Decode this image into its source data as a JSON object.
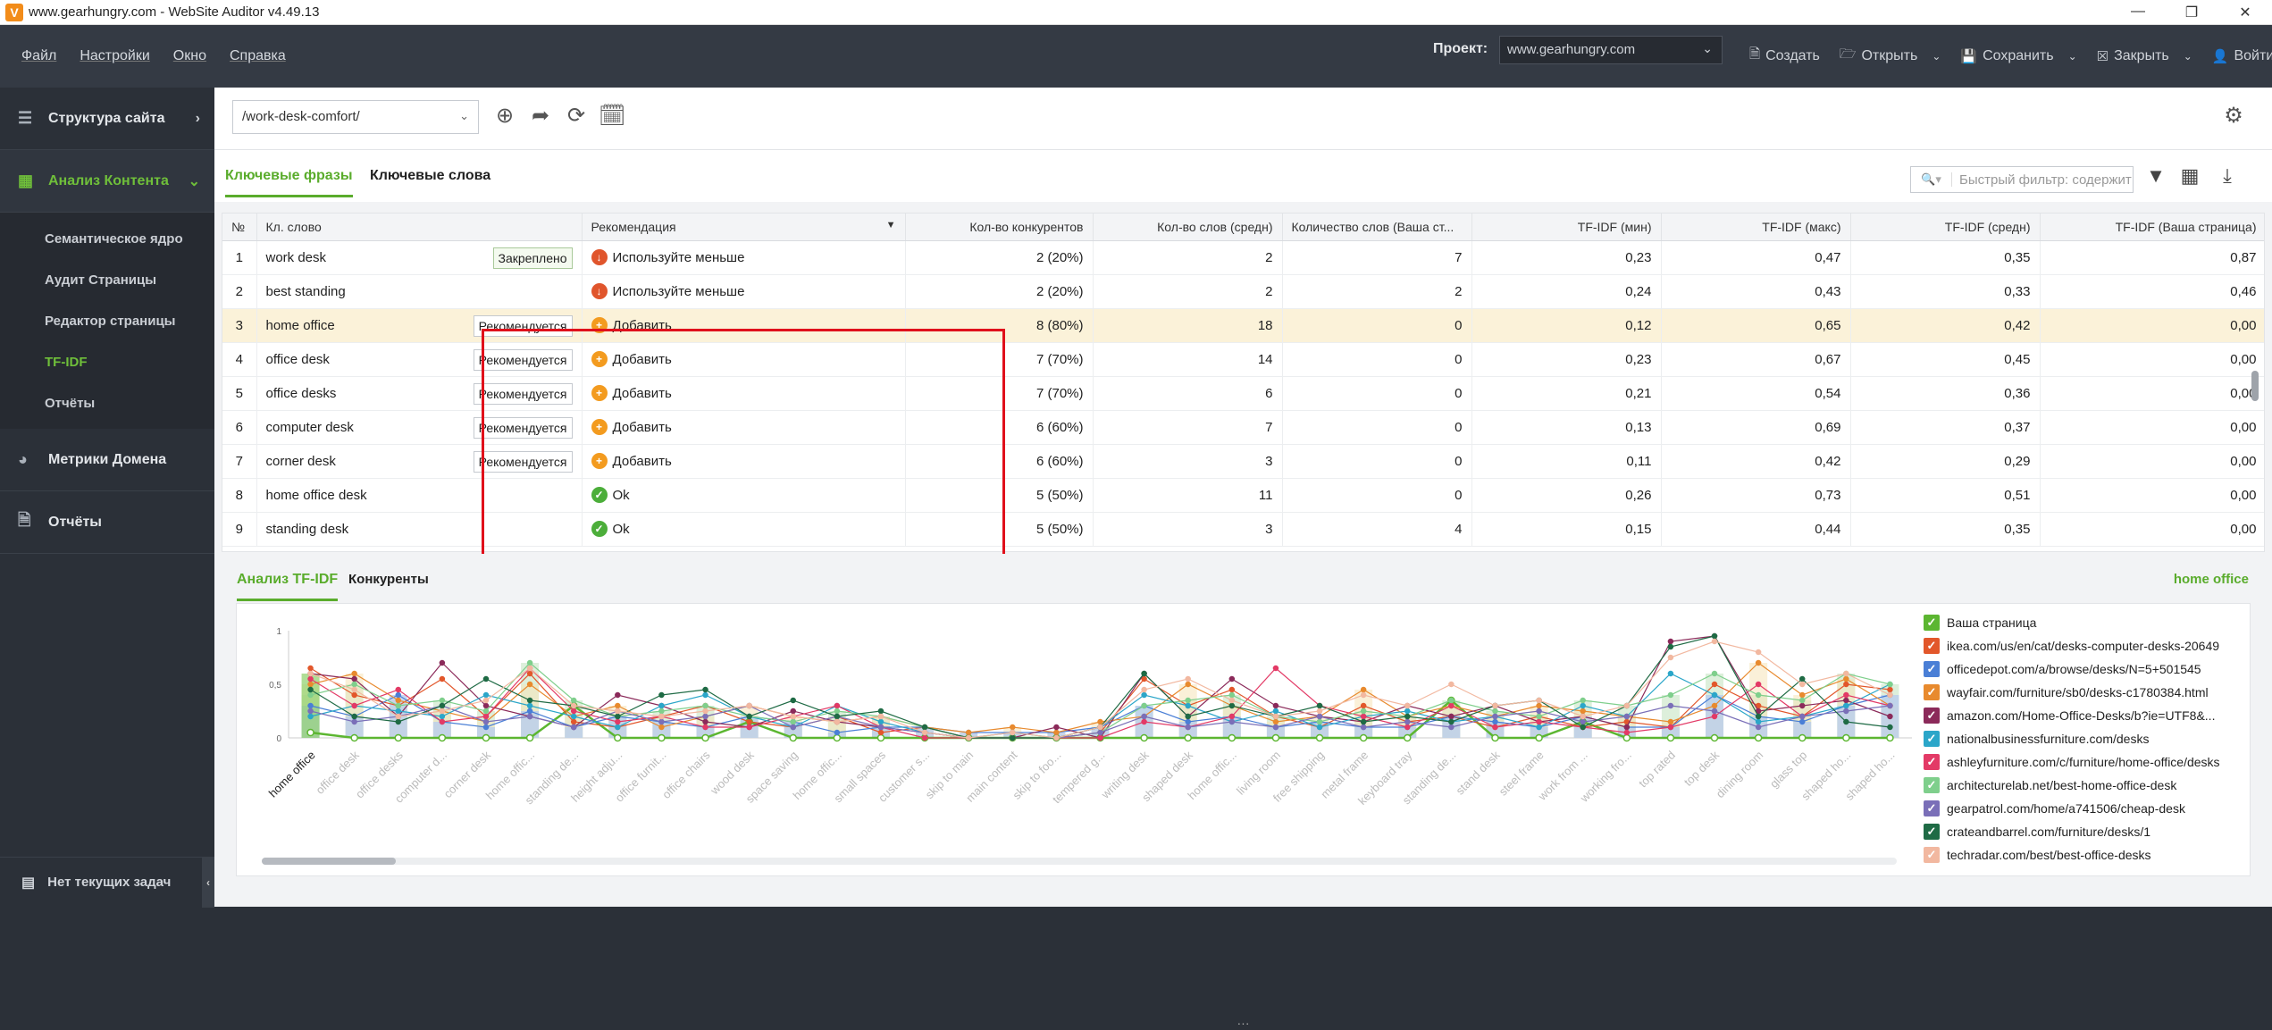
{
  "window": {
    "title": "www.gearhungry.com - WebSite Auditor v4.49.13"
  },
  "menu": [
    "Файл",
    "Настройки",
    "Окно",
    "Справка"
  ],
  "project": {
    "label": "Проект:",
    "value": "www.gearhungry.com"
  },
  "tools": {
    "create": "Создать",
    "open": "Открыть",
    "save": "Сохранить",
    "close": "Закрыть",
    "login": "Войти"
  },
  "sidebar": {
    "site_structure": "Структура сайта",
    "content_analysis": "Анализ Контента",
    "sub": [
      "Семантическое ядро",
      "Аудит Страницы",
      "Редактор страницы",
      "TF-IDF",
      "Отчёты"
    ],
    "domain_metrics": "Метрики Домена",
    "reports": "Отчёты",
    "no_tasks": "Нет текущих задач"
  },
  "toolbar": {
    "url": "/work-desk-comfort/"
  },
  "tabs": {
    "phrases": "Ключевые фразы",
    "words": "Ключевые слова"
  },
  "filter": {
    "placeholder": "Быстрый фильтр: содержит"
  },
  "table": {
    "headers": [
      "№",
      "Кл. слово",
      "Рекомендация",
      "Кол-во конкурентов",
      "Кол-во слов (средн)",
      "Количество слов (Ваша ст...",
      "TF-IDF (мин)",
      "TF-IDF (макс)",
      "TF-IDF (средн)",
      "TF-IDF (Ваша страница)"
    ],
    "rows": [
      {
        "n": "1",
        "kw": "work desk",
        "tag": "Закреплено",
        "rec": "Используйте меньше",
        "comp": "2 (20%)",
        "avg": "2",
        "yours": "7",
        "min": "0,23",
        "max": "0,47",
        "mid": "0,35",
        "page": "0,87"
      },
      {
        "n": "2",
        "kw": "best standing",
        "tag": "",
        "rec": "Используйте меньше",
        "comp": "2 (20%)",
        "avg": "2",
        "yours": "2",
        "min": "0,24",
        "max": "0,43",
        "mid": "0,33",
        "page": "0,46"
      },
      {
        "n": "3",
        "kw": "home office",
        "tag": "Рекомендуется",
        "rec": "Добавить",
        "comp": "8 (80%)",
        "avg": "18",
        "yours": "0",
        "min": "0,12",
        "max": "0,65",
        "mid": "0,42",
        "page": "0,00"
      },
      {
        "n": "4",
        "kw": "office desk",
        "tag": "Рекомендуется",
        "rec": "Добавить",
        "comp": "7 (70%)",
        "avg": "14",
        "yours": "0",
        "min": "0,23",
        "max": "0,67",
        "mid": "0,45",
        "page": "0,00"
      },
      {
        "n": "5",
        "kw": "office desks",
        "tag": "Рекомендуется",
        "rec": "Добавить",
        "comp": "7 (70%)",
        "avg": "6",
        "yours": "0",
        "min": "0,21",
        "max": "0,54",
        "mid": "0,36",
        "page": "0,00"
      },
      {
        "n": "6",
        "kw": "computer desk",
        "tag": "Рекомендуется",
        "rec": "Добавить",
        "comp": "6 (60%)",
        "avg": "7",
        "yours": "0",
        "min": "0,13",
        "max": "0,69",
        "mid": "0,37",
        "page": "0,00"
      },
      {
        "n": "7",
        "kw": "corner desk",
        "tag": "Рекомендуется",
        "rec": "Добавить",
        "comp": "6 (60%)",
        "avg": "3",
        "yours": "0",
        "min": "0,11",
        "max": "0,42",
        "mid": "0,29",
        "page": "0,00"
      },
      {
        "n": "8",
        "kw": "home office desk",
        "tag": "",
        "rec": "Ok",
        "comp": "5 (50%)",
        "avg": "11",
        "yours": "0",
        "min": "0,26",
        "max": "0,73",
        "mid": "0,51",
        "page": "0,00"
      },
      {
        "n": "9",
        "kw": "standing desk",
        "tag": "",
        "rec": "Ok",
        "comp": "5 (50%)",
        "avg": "3",
        "yours": "4",
        "min": "0,15",
        "max": "0,44",
        "mid": "0,35",
        "page": "0,00"
      }
    ]
  },
  "bottom_tabs": {
    "tfidf": "Анализ TF-IDF",
    "competitors": "Конкуренты",
    "selected": "home office"
  },
  "chart_data": {
    "type": "line",
    "yticks": [
      "0",
      "0,5",
      "1"
    ],
    "ylim": [
      0,
      1
    ],
    "categories": [
      "home office",
      "office desk",
      "office desks",
      "computer d...",
      "corner desk",
      "home offic...",
      "standing de...",
      "height adju...",
      "office furnit...",
      "office chairs",
      "wood desk",
      "space saving",
      "home offic...",
      "small spaces",
      "customer s...",
      "skip to main",
      "main content",
      "skip to foo...",
      "tempered g...",
      "writing desk",
      "shaped desk",
      "home offic...",
      "living room",
      "free shipping",
      "metal frame",
      "keyboard tray",
      "standing de...",
      "stand desk",
      "steel frame",
      "work from ...",
      "working fro...",
      "top rated",
      "top desk",
      "dining room",
      "glass top",
      "shaped ho...",
      "shaped ho..."
    ],
    "series": [
      {
        "name": "Ваша страница",
        "color": "#5cb631",
        "values": [
          0.05,
          0,
          0,
          0,
          0,
          0,
          0.3,
          0,
          0,
          0,
          0.15,
          0,
          0,
          0,
          0,
          0,
          0,
          0,
          0,
          0,
          0,
          0,
          0,
          0,
          0,
          0,
          0.35,
          0,
          0,
          0.15,
          0,
          0,
          0,
          0,
          0,
          0,
          0
        ]
      },
      {
        "name": "ikea.com/us/en/cat/desks-computer-desks-20649",
        "color": "#e2572b",
        "values": [
          0.65,
          0.4,
          0.3,
          0.55,
          0.2,
          0.6,
          0.15,
          0.1,
          0.2,
          0.3,
          0.15,
          0.1,
          0.2,
          0.05,
          0.1,
          0,
          0,
          0,
          0.05,
          0.55,
          0.3,
          0.45,
          0.2,
          0.1,
          0.3,
          0.15,
          0.2,
          0.1,
          0.2,
          0.1,
          0.15,
          0.1,
          0.5,
          0.3,
          0.2,
          0.5,
          0.45
        ]
      },
      {
        "name": "officedepot.com/a/browse/desks/N=5+501545",
        "color": "#4a7fd6",
        "values": [
          0.3,
          0.2,
          0.4,
          0.15,
          0.1,
          0.25,
          0.1,
          0.2,
          0.15,
          0.1,
          0.2,
          0.15,
          0.05,
          0.1,
          0.1,
          0.05,
          0.05,
          0.05,
          0.1,
          0.3,
          0.15,
          0.2,
          0.1,
          0.15,
          0.1,
          0.1,
          0.2,
          0.15,
          0.1,
          0.2,
          0.1,
          0.1,
          0.4,
          0.2,
          0.15,
          0.3,
          0.4
        ]
      },
      {
        "name": "wayfair.com/furniture/sb0/desks-c1780384.html",
        "color": "#e88a2e",
        "values": [
          0.5,
          0.6,
          0.35,
          0.25,
          0.15,
          0.5,
          0.2,
          0.3,
          0.1,
          0.2,
          0.3,
          0.2,
          0.15,
          0.2,
          0.1,
          0.05,
          0.1,
          0.05,
          0.15,
          0.2,
          0.5,
          0.3,
          0.15,
          0.2,
          0.45,
          0.2,
          0.3,
          0.2,
          0.3,
          0.25,
          0.2,
          0.15,
          0.3,
          0.7,
          0.4,
          0.55,
          0.3
        ]
      },
      {
        "name": "amazon.com/Home-Office-Desks/b?ie=UTF8&...",
        "color": "#8b2a5a",
        "values": [
          0.6,
          0.55,
          0.2,
          0.7,
          0.3,
          0.2,
          0.1,
          0.4,
          0.3,
          0.15,
          0.1,
          0.25,
          0.15,
          0.1,
          0.05,
          0,
          0,
          0.1,
          0,
          0.6,
          0.2,
          0.55,
          0.3,
          0.2,
          0.15,
          0.3,
          0.2,
          0.3,
          0.15,
          0.2,
          0.1,
          0.9,
          0.95,
          0.25,
          0.3,
          0.35,
          0.2
        ]
      },
      {
        "name": "nationalbusinessfurniture.com/desks",
        "color": "#2ba6c9",
        "values": [
          0.2,
          0.3,
          0.25,
          0.2,
          0.4,
          0.3,
          0.2,
          0.1,
          0.3,
          0.4,
          0.2,
          0.1,
          0.3,
          0.15,
          0.05,
          0,
          0.05,
          0,
          0.1,
          0.4,
          0.3,
          0.15,
          0.25,
          0.1,
          0.2,
          0.25,
          0.15,
          0.2,
          0.1,
          0.3,
          0.2,
          0.6,
          0.4,
          0.15,
          0.2,
          0.3,
          0.5
        ]
      },
      {
        "name": "ashleyfurniture.com/c/furniture/home-office/desks",
        "color": "#e33a66",
        "values": [
          0.55,
          0.3,
          0.45,
          0.15,
          0.2,
          0.65,
          0.25,
          0.15,
          0.2,
          0.1,
          0.1,
          0.2,
          0.3,
          0.1,
          0,
          0,
          0,
          0,
          0,
          0.15,
          0.1,
          0.2,
          0.65,
          0.3,
          0.2,
          0.1,
          0.3,
          0.1,
          0.15,
          0.1,
          0.05,
          0.1,
          0.2,
          0.5,
          0.2,
          0.4,
          0.3
        ]
      },
      {
        "name": "architecturelab.net/best-home-office-desk",
        "color": "#7fcf8c",
        "values": [
          0.4,
          0.5,
          0.3,
          0.35,
          0.25,
          0.7,
          0.35,
          0.2,
          0.25,
          0.3,
          0.2,
          0.15,
          0.25,
          0.2,
          0.1,
          0,
          0,
          0,
          0.05,
          0.3,
          0.35,
          0.4,
          0.2,
          0.15,
          0.25,
          0.2,
          0.35,
          0.25,
          0.2,
          0.35,
          0.3,
          0.4,
          0.6,
          0.4,
          0.35,
          0.6,
          0.5
        ]
      },
      {
        "name": "gearpatrol.com/home/a741506/cheap-desk",
        "color": "#7a6fb8",
        "values": [
          0.25,
          0.15,
          0.2,
          0.3,
          0.15,
          0.2,
          0.1,
          0.25,
          0.15,
          0.2,
          0.3,
          0.1,
          0.2,
          0.1,
          0.05,
          0,
          0,
          0,
          0.05,
          0.2,
          0.1,
          0.15,
          0.1,
          0.2,
          0.1,
          0.15,
          0.1,
          0.2,
          0.25,
          0.15,
          0.2,
          0.3,
          0.25,
          0.1,
          0.2,
          0.25,
          0.3
        ]
      },
      {
        "name": "crateandbarrel.com/furniture/desks/1",
        "color": "#1f6b45",
        "values": [
          0.45,
          0.2,
          0.15,
          0.3,
          0.55,
          0.35,
          0.3,
          0.2,
          0.4,
          0.45,
          0.2,
          0.35,
          0.2,
          0.25,
          0.1,
          0,
          0,
          0,
          0.1,
          0.6,
          0.2,
          0.3,
          0.2,
          0.3,
          0.15,
          0.2,
          0.15,
          0.3,
          0.35,
          0.1,
          0.3,
          0.85,
          0.95,
          0.2,
          0.55,
          0.15,
          0.1
        ]
      },
      {
        "name": "techradar.com/best/best-office-desks",
        "color": "#f2b8a0",
        "values": [
          0.6,
          0.45,
          0.2,
          0.25,
          0.35,
          0.65,
          0.3,
          0.25,
          0.2,
          0.25,
          0.3,
          0.2,
          0.15,
          0.2,
          0.05,
          0,
          0.05,
          0,
          0.1,
          0.45,
          0.55,
          0.35,
          0.2,
          0.25,
          0.4,
          0.3,
          0.5,
          0.3,
          0.35,
          0.2,
          0.3,
          0.75,
          0.9,
          0.8,
          0.5,
          0.6,
          0.4
        ]
      }
    ]
  }
}
